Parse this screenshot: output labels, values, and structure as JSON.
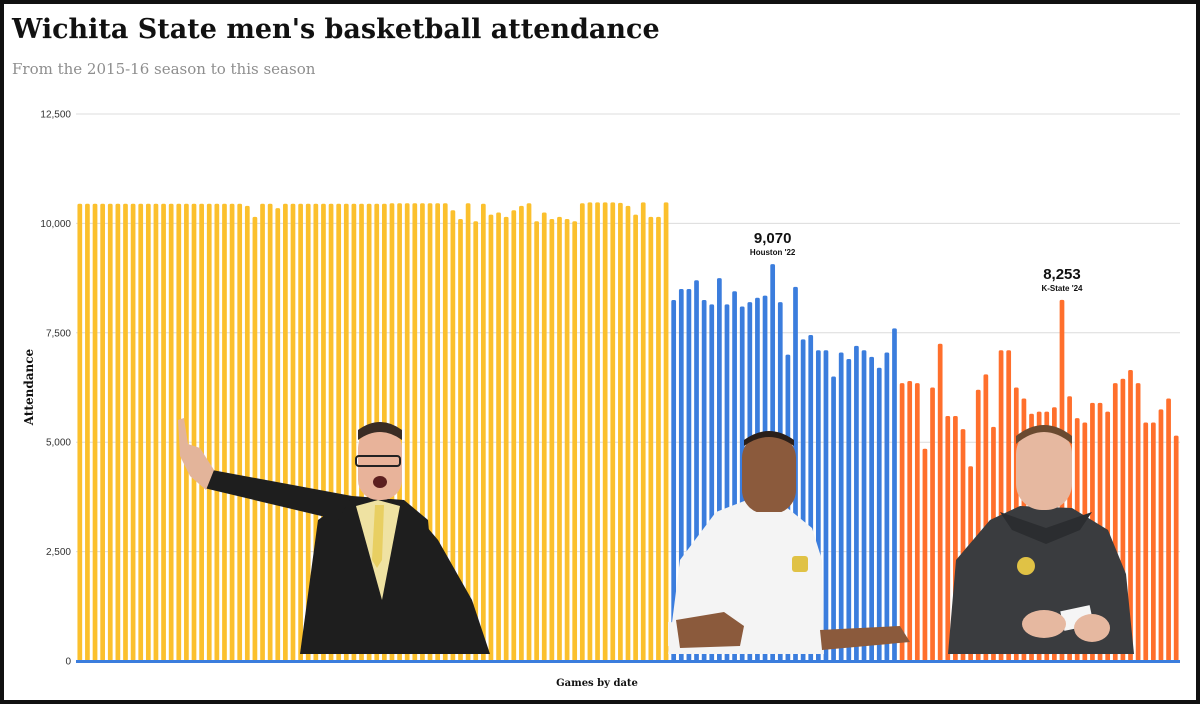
{
  "chart_data": {
    "type": "bar",
    "title": "Wichita State men's basketball attendance",
    "subtitle": "From the 2015-16 season to this season",
    "ylabel": "Attendance",
    "xlabel": "Games by date",
    "ylim": [
      0,
      12500
    ],
    "yticks": [
      0,
      2500,
      5000,
      7500,
      10000,
      12500
    ],
    "ytick_labels": [
      "0",
      "2,500",
      "5,000",
      "7,500",
      "10,000",
      "12,500"
    ],
    "grid": true,
    "colors": {
      "era1": "#fbc02d",
      "era2": "#3b7ddd",
      "era3": "#ff6f2c"
    },
    "series": [
      {
        "values": [
          10450,
          10450,
          10450,
          10450,
          10450,
          10450,
          10450,
          10450,
          10450,
          10450,
          10450,
          10450,
          10450,
          10450,
          10450,
          10450,
          10450,
          10450,
          10450,
          10450,
          10450,
          10450,
          10400,
          10150,
          10450,
          10450,
          10350,
          10450,
          10450,
          10450,
          10450,
          10450,
          10450,
          10450,
          10450,
          10450,
          10450,
          10450,
          10450,
          10450,
          10450,
          10460,
          10460,
          10460,
          10460,
          10460,
          10460,
          10460,
          10460,
          10300,
          10100,
          10460,
          10050,
          10450,
          10200,
          10250,
          10150,
          10300,
          10400,
          10460,
          10050,
          10250,
          10100,
          10150,
          10100,
          10050,
          10460,
          10480,
          10480,
          10480,
          10480,
          10470,
          10400,
          10200,
          10480,
          10150,
          10150,
          10480
        ]
      },
      {
        "values": [
          8250,
          8500,
          8500,
          8700,
          8250,
          8150,
          8750,
          8150,
          8450,
          8100,
          8200,
          8300,
          8350,
          9070,
          8200,
          7000,
          8550,
          7350,
          7450,
          7100,
          7100,
          6500,
          7050,
          6900,
          7200,
          7100,
          6950,
          6700,
          7050,
          7600
        ]
      },
      {
        "values": [
          6350,
          6400,
          6350,
          4850,
          6250,
          7250,
          5600,
          5600,
          5300,
          4450,
          6200,
          6550,
          5350,
          7100,
          7100,
          6250,
          6000,
          5650,
          5700,
          5700,
          5800,
          8253,
          6050,
          5550,
          5450,
          5900,
          5900,
          5700,
          6350,
          6450,
          6650,
          6350,
          5450,
          5450,
          5750,
          6000,
          5150
        ]
      }
    ],
    "annotations": [
      {
        "value": "9,070",
        "label": "Houston '22"
      },
      {
        "value": "8,253",
        "label": "K-State '24"
      }
    ]
  }
}
